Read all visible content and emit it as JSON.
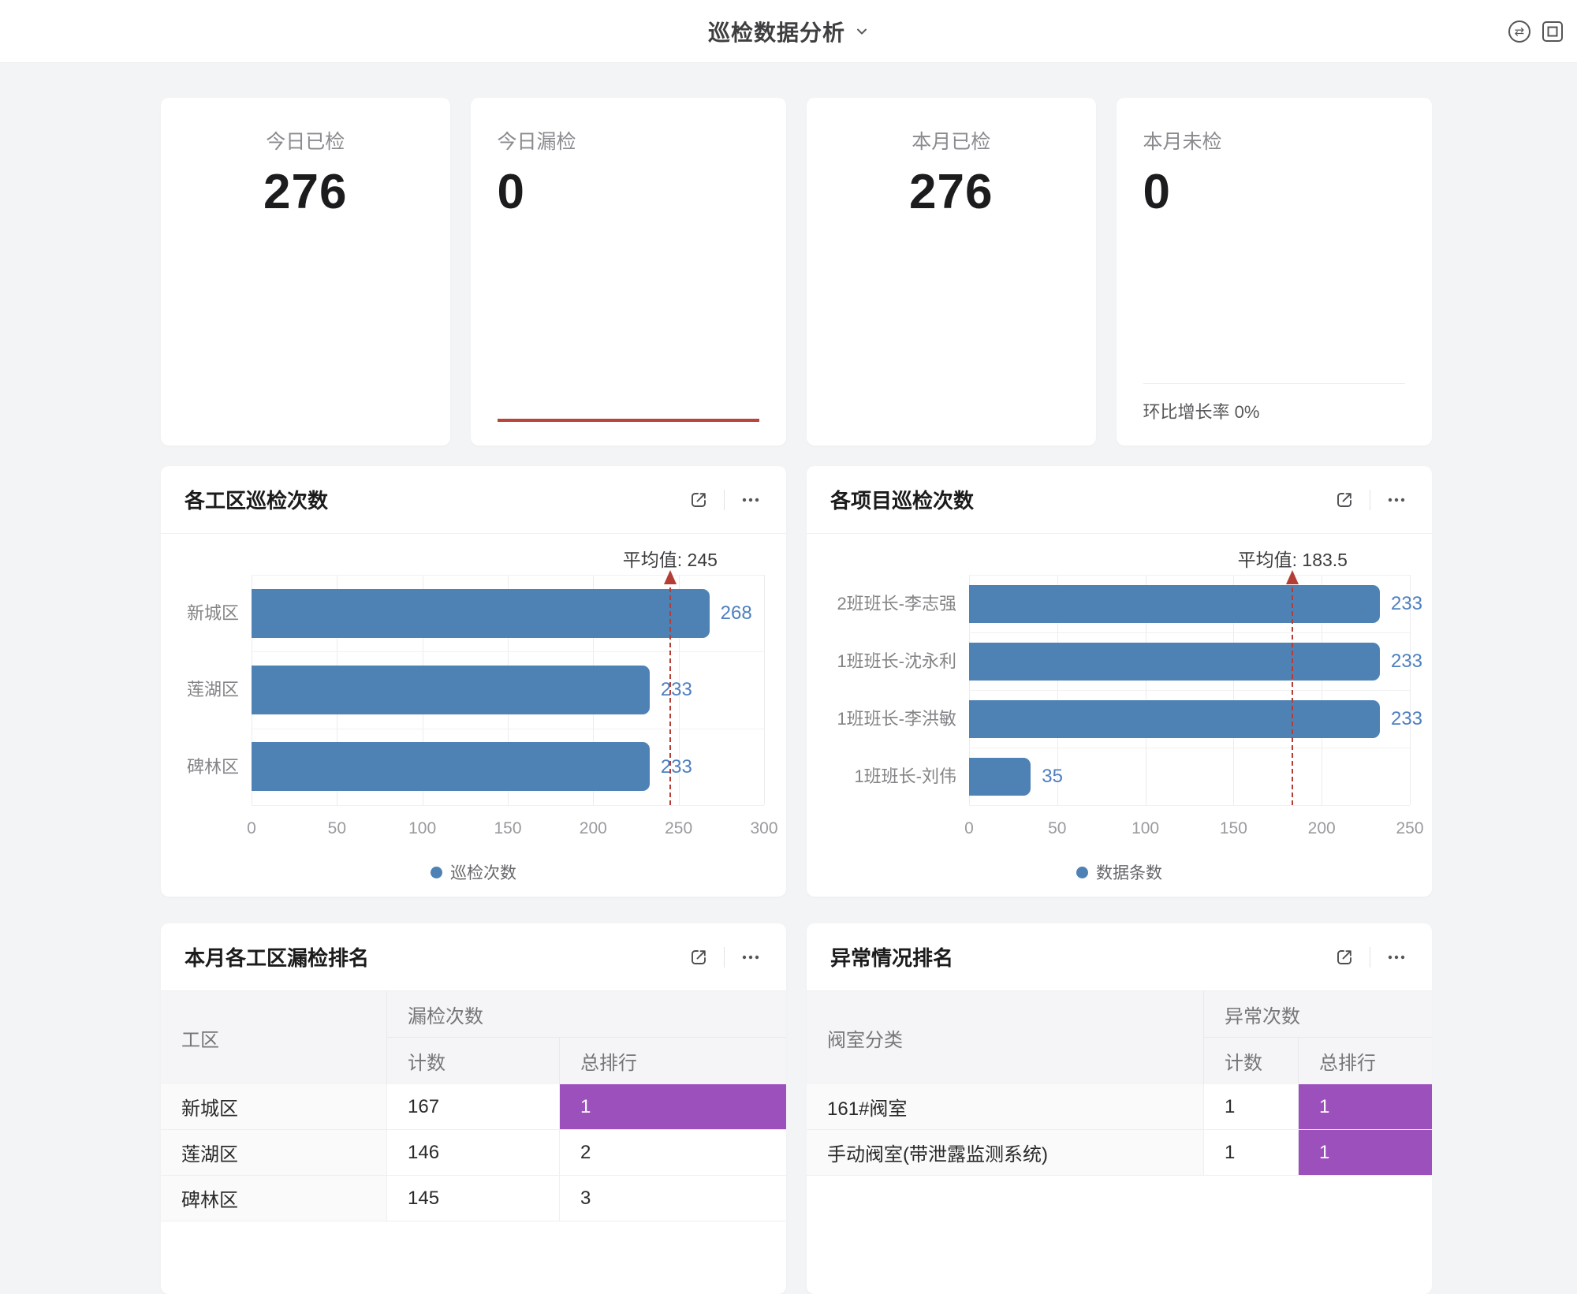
{
  "header": {
    "title": "巡检数据分析",
    "icons": {
      "swap_glyph": "⇄"
    }
  },
  "colors": {
    "bar_blue": "#4f82b4",
    "value_blue": "#4d7fc0",
    "average_red": "#b43e35",
    "accent_red": "#b8443a",
    "rank_purple": "#9c50bc",
    "page_background": "#f3f4f6"
  },
  "kpi_cards": [
    {
      "label": "今日已检",
      "value": "276",
      "align": "center"
    },
    {
      "label": "今日漏检",
      "value": "0",
      "align": "left",
      "accent_line": true
    },
    {
      "label": "本月已检",
      "value": "276",
      "align": "center"
    },
    {
      "label": "本月未检",
      "value": "0",
      "align": "left",
      "footer": "环比增长率 0%"
    }
  ],
  "chart_data": [
    {
      "type": "bar",
      "orientation": "horizontal",
      "title": "各工区巡检次数",
      "categories": [
        "新城区",
        "莲湖区",
        "碑林区"
      ],
      "values": [
        268,
        233,
        233
      ],
      "series_name": "巡检次数",
      "average": 245,
      "average_annotation": "平均值: 245",
      "x_ticks": [
        0,
        50,
        100,
        150,
        200,
        250,
        300
      ],
      "xlim": [
        0,
        300
      ],
      "xlabel": "",
      "ylabel": "",
      "grid": true,
      "legend_position": "bottom",
      "bar_color": "#4f82b4"
    },
    {
      "type": "bar",
      "orientation": "horizontal",
      "title": "各项目巡检次数",
      "categories": [
        "2班班长-李志强",
        "1班班长-沈永利",
        "1班班长-李洪敏",
        "1班班长-刘伟"
      ],
      "values": [
        233,
        233,
        233,
        35
      ],
      "series_name": "数据条数",
      "average": 183.5,
      "average_annotation": "平均值: 183.5",
      "x_ticks": [
        0,
        50,
        100,
        150,
        200,
        250
      ],
      "xlim": [
        0,
        250
      ],
      "xlabel": "",
      "ylabel": "",
      "grid": true,
      "legend_position": "bottom",
      "bar_color": "#4f82b4"
    }
  ],
  "tables": [
    {
      "title": "本月各工区漏检排名",
      "col1_header": "工区",
      "group_header": "漏检次数",
      "sub_headers": [
        "计数",
        "总排行"
      ],
      "rows": [
        {
          "name": "新城区",
          "count": "167",
          "rank": "1",
          "rank_highlight": true
        },
        {
          "name": "莲湖区",
          "count": "146",
          "rank": "2",
          "rank_highlight": false
        },
        {
          "name": "碑林区",
          "count": "145",
          "rank": "3",
          "rank_highlight": false
        }
      ]
    },
    {
      "title": "异常情况排名",
      "col1_header": "阀室分类",
      "group_header": "异常次数",
      "sub_headers": [
        "计数",
        "总排行"
      ],
      "rows": [
        {
          "name": "161#阀室",
          "count": "1",
          "rank": "1",
          "rank_highlight": true
        },
        {
          "name": "手动阀室(带泄露监测系统)",
          "count": "1",
          "rank": "1",
          "rank_highlight": true
        }
      ]
    }
  ]
}
